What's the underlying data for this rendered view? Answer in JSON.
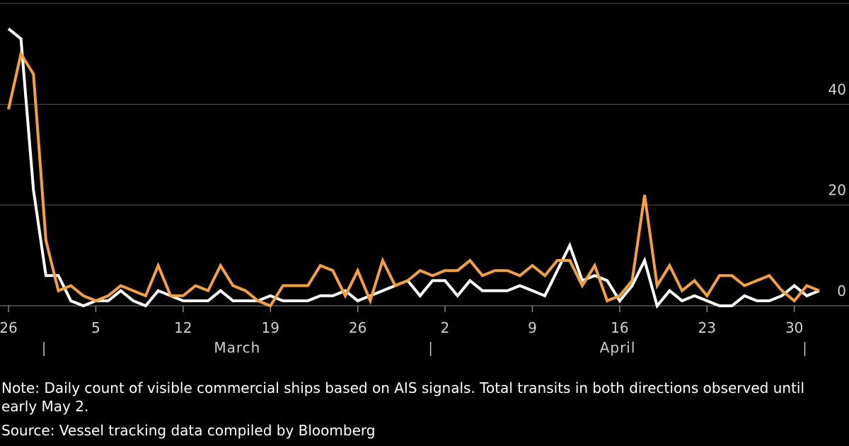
{
  "chart_data": {
    "type": "line",
    "categories": [
      "26",
      null,
      null,
      null,
      null,
      null,
      null,
      "5",
      null,
      null,
      null,
      null,
      null,
      null,
      "12",
      null,
      null,
      null,
      null,
      null,
      null,
      "19",
      null,
      null,
      null,
      null,
      null,
      null,
      "26",
      null,
      null,
      null,
      null,
      null,
      null,
      "2",
      null,
      null,
      null,
      null,
      null,
      null,
      "9",
      null,
      null,
      null,
      null,
      null,
      null,
      "16",
      null,
      null,
      null,
      null,
      null,
      null,
      "23",
      null,
      null,
      null,
      null,
      null,
      null,
      "30",
      null,
      null
    ],
    "month_labels": [
      "March",
      "April"
    ],
    "series": [
      {
        "color": "#ffffff",
        "values": [
          55,
          53,
          23,
          6,
          6,
          1,
          0,
          1,
          1,
          3,
          1,
          0,
          3,
          2,
          1,
          1,
          1,
          3,
          1,
          1,
          1,
          2,
          1,
          1,
          1,
          2,
          2,
          3,
          1,
          2,
          3,
          4,
          5,
          2,
          5,
          5,
          2,
          5,
          3,
          3,
          3,
          4,
          3,
          2,
          7,
          12,
          5,
          6,
          5,
          1,
          4,
          9,
          0,
          3,
          1,
          2,
          1,
          0,
          0,
          2,
          1,
          1,
          2,
          4,
          2,
          3
        ]
      },
      {
        "color": "#f5a03a",
        "values": [
          39,
          50,
          46,
          13,
          3,
          4,
          2,
          1,
          2,
          4,
          3,
          2,
          8,
          2,
          2,
          4,
          3,
          8,
          4,
          3,
          1,
          0,
          4,
          4,
          4,
          8,
          7,
          2,
          7,
          1,
          9,
          4,
          5,
          7,
          6,
          7,
          7,
          9,
          6,
          7,
          7,
          6,
          8,
          6,
          9,
          9,
          4,
          8,
          1,
          2,
          5,
          22,
          4,
          8,
          3,
          5,
          2,
          6,
          6,
          4,
          5,
          6,
          3,
          1,
          4,
          3
        ]
      }
    ],
    "ylim": [
      0,
      60
    ],
    "yticks": [
      0,
      20,
      40
    ],
    "grid": true,
    "note": "Note: Daily count of visible commercial ships based on AIS signals. Total transits in both directions observed until early May 2.",
    "source": "Source: Vessel tracking data compiled by Bloomberg"
  }
}
